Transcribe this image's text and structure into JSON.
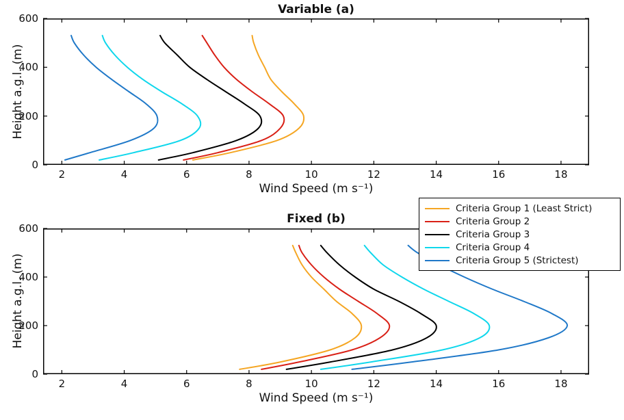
{
  "figure": {
    "background": "#ffffff"
  },
  "axis_style": {
    "line_color": "#000000",
    "tick_len": 6,
    "curve_width": 2
  },
  "chart_data": [
    {
      "type": "line",
      "title": "Variable (a)",
      "xlabel": "Wind Speed (m s⁻¹)",
      "ylabel": "Height a.g.l. (m)",
      "xlim": [
        1.4,
        18.9
      ],
      "ylim": [
        0,
        600
      ],
      "xticks": [
        2,
        4,
        6,
        8,
        10,
        12,
        14,
        16,
        18
      ],
      "yticks": [
        0,
        200,
        400,
        600
      ],
      "grid": false,
      "heights": [
        20,
        50,
        100,
        150,
        200,
        250,
        300,
        350,
        400,
        450,
        500,
        530
      ],
      "series": [
        {
          "name": "Criteria Group 1 (Least Strict)",
          "color": "#F5A623",
          "speeds": [
            6.2,
            7.4,
            8.9,
            9.6,
            9.75,
            9.45,
            9.05,
            8.7,
            8.5,
            8.3,
            8.15,
            8.1
          ]
        },
        {
          "name": "Criteria Group 2",
          "color": "#D92016",
          "speeds": [
            5.9,
            7.0,
            8.4,
            9.0,
            9.1,
            8.65,
            8.1,
            7.6,
            7.2,
            6.9,
            6.65,
            6.5
          ]
        },
        {
          "name": "Criteria Group 3",
          "color": "#000000",
          "speeds": [
            5.1,
            6.2,
            7.6,
            8.3,
            8.35,
            7.85,
            7.25,
            6.65,
            6.1,
            5.7,
            5.3,
            5.15
          ]
        },
        {
          "name": "Criteria Group 4",
          "color": "#0FD7EC",
          "speeds": [
            3.2,
            4.3,
            5.8,
            6.4,
            6.35,
            5.85,
            5.2,
            4.6,
            4.1,
            3.7,
            3.4,
            3.3
          ]
        },
        {
          "name": "Criteria Group 5 (Strictest)",
          "color": "#1F78C8",
          "speeds": [
            2.1,
            2.9,
            4.2,
            4.95,
            5.05,
            4.7,
            4.15,
            3.6,
            3.1,
            2.7,
            2.4,
            2.3
          ]
        }
      ]
    },
    {
      "type": "line",
      "title": "Fixed (b)",
      "xlabel": "Wind Speed (m s⁻¹)",
      "ylabel": "Height a.g.l. (m)",
      "xlim": [
        1.4,
        18.9
      ],
      "ylim": [
        0,
        600
      ],
      "xticks": [
        2,
        4,
        6,
        8,
        10,
        12,
        14,
        16,
        18
      ],
      "yticks": [
        0,
        200,
        400,
        600
      ],
      "grid": false,
      "heights": [
        20,
        50,
        100,
        150,
        200,
        250,
        300,
        350,
        400,
        450,
        500,
        530
      ],
      "series": [
        {
          "name": "Criteria Group 1 (Least Strict)",
          "color": "#F5A623",
          "speeds": [
            7.7,
            9.0,
            10.6,
            11.4,
            11.6,
            11.3,
            10.8,
            10.4,
            10.0,
            9.7,
            9.5,
            9.4
          ]
        },
        {
          "name": "Criteria Group 2",
          "color": "#D92016",
          "speeds": [
            8.4,
            9.6,
            11.3,
            12.2,
            12.5,
            12.1,
            11.5,
            10.9,
            10.4,
            10.0,
            9.7,
            9.6
          ]
        },
        {
          "name": "Criteria Group 3",
          "color": "#000000",
          "speeds": [
            9.2,
            10.6,
            12.6,
            13.7,
            14.0,
            13.5,
            12.8,
            12.0,
            11.4,
            10.9,
            10.5,
            10.3
          ]
        },
        {
          "name": "Criteria Group 4",
          "color": "#0FD7EC",
          "speeds": [
            10.3,
            11.9,
            14.2,
            15.4,
            15.7,
            15.2,
            14.4,
            13.6,
            12.9,
            12.3,
            11.9,
            11.7
          ]
        },
        {
          "name": "Criteria Group 5 (Strictest)",
          "color": "#1F78C8",
          "speeds": [
            11.3,
            13.2,
            16.0,
            17.6,
            18.2,
            17.7,
            16.8,
            15.8,
            14.9,
            14.1,
            13.4,
            13.1
          ]
        }
      ]
    }
  ],
  "legend": {
    "position": "middle-right",
    "entries": [
      {
        "label": "Criteria Group 1 (Least Strict)",
        "color": "#F5A623"
      },
      {
        "label": "Criteria Group 2",
        "color": "#D92016"
      },
      {
        "label": "Criteria Group 3",
        "color": "#000000"
      },
      {
        "label": "Criteria Group 4",
        "color": "#0FD7EC"
      },
      {
        "label": "Criteria Group 5 (Strictest)",
        "color": "#1F78C8"
      }
    ]
  }
}
